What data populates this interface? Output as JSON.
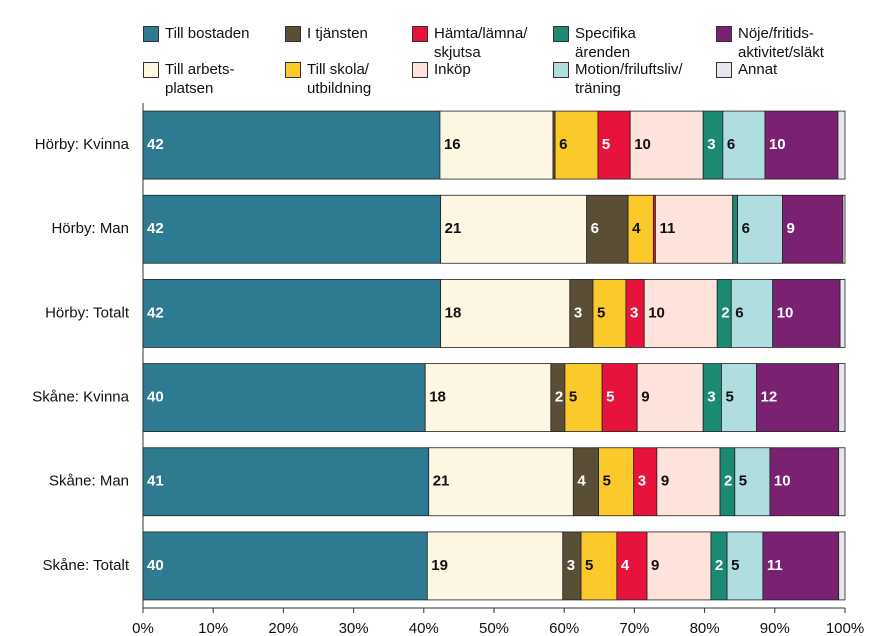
{
  "chart_data": {
    "type": "stacked-bar-horizontal",
    "categories": [
      "Hörby: Kvinna",
      "Hörby: Man",
      "Hörby: Totalt",
      "Skåne: Kvinna",
      "Skåne: Man",
      "Skåne: Totalt"
    ],
    "series": [
      {
        "name": "Till bostaden",
        "color": "#2e7a90",
        "values": [
          42.3,
          42.4,
          42.4,
          40.2,
          40.7,
          40.5
        ],
        "value_labels": [
          "42",
          "42",
          "42",
          "40",
          "41",
          "40"
        ]
      },
      {
        "name": "Till arbets-\nplatsen",
        "color": "#fdf6e3",
        "values": [
          16.1,
          20.8,
          18.4,
          17.9,
          20.6,
          19.3
        ],
        "value_labels": [
          "16",
          "21",
          "18",
          "18",
          "21",
          "19"
        ]
      },
      {
        "name": "I tjänsten",
        "color": "#5b4e36",
        "values": [
          0.3,
          5.9,
          3.3,
          2.0,
          3.6,
          2.6
        ],
        "value_labels": [
          null,
          "6",
          "3",
          "2",
          "4",
          "3"
        ]
      },
      {
        "name": "Till skola/\nutbildning",
        "color": "#fcc92a",
        "values": [
          6.1,
          3.6,
          4.7,
          5.3,
          5.0,
          5.1
        ],
        "value_labels": [
          "6",
          "4",
          "5",
          "5",
          "5",
          "5"
        ]
      },
      {
        "name": "Hämta/lämna/\nskjutsa",
        "color": "#e8133c",
        "values": [
          4.6,
          0.3,
          2.6,
          5.0,
          3.3,
          4.3
        ],
        "value_labels": [
          "5",
          null,
          "3",
          "5",
          "3",
          "4"
        ]
      },
      {
        "name": "Inköp",
        "color": "#fde3dc",
        "values": [
          10.4,
          11.0,
          10.4,
          9.4,
          9.0,
          9.1
        ],
        "value_labels": [
          "10",
          "11",
          "10",
          "9",
          "9",
          "9"
        ]
      },
      {
        "name": "Specifika\närenden",
        "color": "#1a8a72",
        "values": [
          2.8,
          0.7,
          2.0,
          2.6,
          2.1,
          2.3
        ],
        "value_labels": [
          "3",
          null,
          "2",
          "3",
          "2",
          "2"
        ]
      },
      {
        "name": "Motion/friluftsliv/\nträning",
        "color": "#b0dde0",
        "values": [
          6.0,
          6.4,
          5.9,
          5.0,
          5.0,
          5.1
        ],
        "value_labels": [
          "6",
          "6",
          "6",
          "5",
          "5",
          "5"
        ]
      },
      {
        "name": "Nöje/fritids-\naktivitet/släkt",
        "color": "#7b2171",
        "values": [
          10.4,
          8.6,
          9.6,
          11.7,
          9.8,
          10.8
        ],
        "value_labels": [
          "10",
          "9",
          "10",
          "12",
          "10",
          "11"
        ]
      },
      {
        "name": "Annat",
        "color": "#e6e6f0",
        "values": [
          1.0,
          0.3,
          0.7,
          0.9,
          0.9,
          0.9
        ],
        "value_labels": [
          null,
          null,
          null,
          null,
          null,
          null
        ]
      }
    ],
    "xlim": [
      0,
      100
    ],
    "xticks": [
      {
        "value": 0,
        "label": "0%"
      },
      {
        "value": 10,
        "label": "10%"
      },
      {
        "value": 20,
        "label": "20%"
      },
      {
        "value": 30,
        "label": "30%"
      },
      {
        "value": 40,
        "label": "40%"
      },
      {
        "value": 50,
        "label": "50%"
      },
      {
        "value": 60,
        "label": "60%"
      },
      {
        "value": 70,
        "label": "70%"
      },
      {
        "value": 80,
        "label": "80%"
      },
      {
        "value": 90,
        "label": "90%"
      },
      {
        "value": 100,
        "label": "100%"
      }
    ]
  }
}
